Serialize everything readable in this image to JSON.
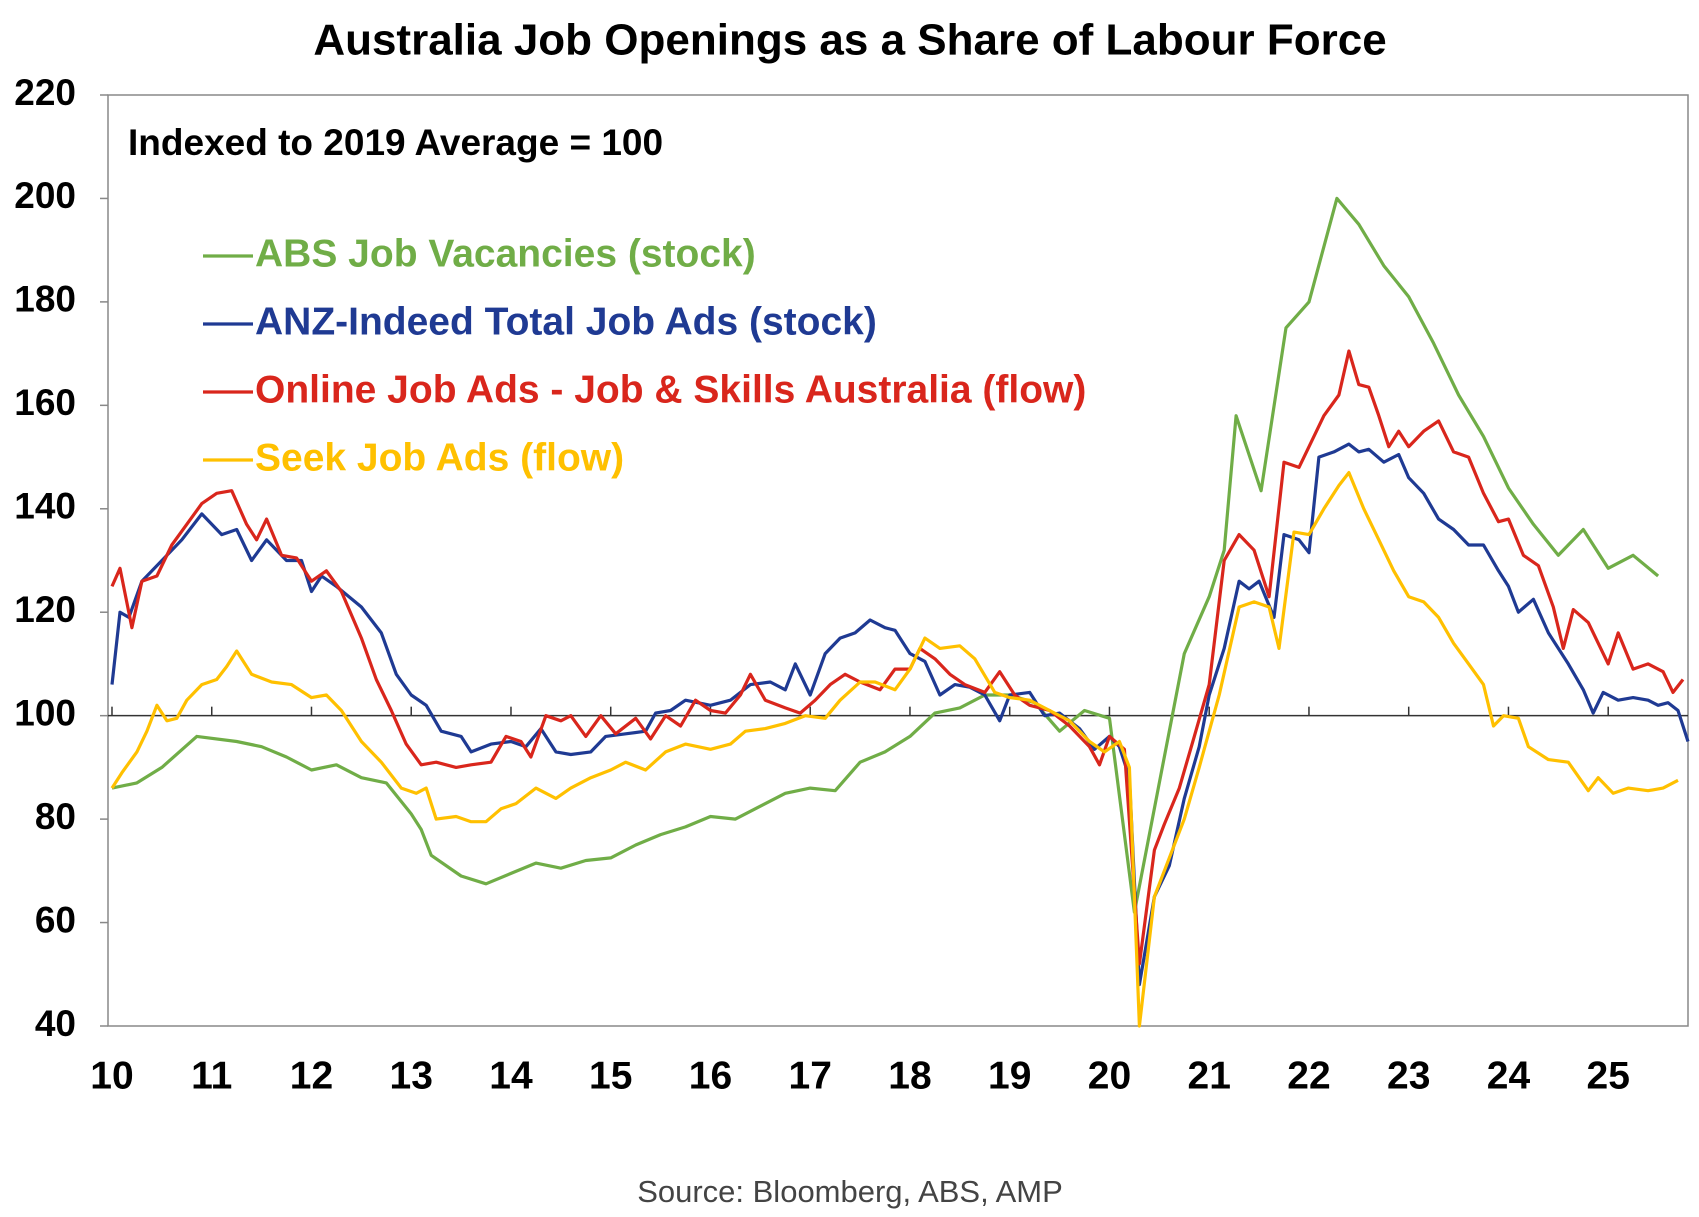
{
  "chart_data": {
    "type": "line",
    "title": "Australia Job Openings as a Share of Labour Force",
    "subtitle": "Indexed to 2019 Average = 100",
    "source": "Source: Bloomberg, ABS, AMP",
    "xlim": [
      9.96,
      25.8
    ],
    "xticks": [
      10,
      11,
      12,
      13,
      14,
      15,
      16,
      17,
      18,
      19,
      20,
      21,
      22,
      23,
      24,
      25
    ],
    "ylim": [
      40,
      220
    ],
    "yticks": [
      40,
      60,
      80,
      100,
      120,
      140,
      160,
      180,
      200,
      220
    ],
    "reference_line": 100,
    "legend": "upper left",
    "grid": false,
    "series": [
      {
        "name": "ABS Job Vacancies (stock)",
        "color": "#70ad47",
        "x": [
          10.0,
          10.25,
          10.5,
          10.85,
          11.25,
          11.5,
          11.75,
          12.0,
          12.25,
          12.5,
          12.75,
          13.0,
          13.1,
          13.2,
          13.5,
          13.75,
          14.0,
          14.25,
          14.5,
          14.75,
          15.0,
          15.25,
          15.5,
          15.75,
          16.0,
          16.25,
          16.5,
          16.75,
          17.0,
          17.25,
          17.5,
          17.75,
          18.0,
          18.25,
          18.5,
          18.75,
          19.0,
          19.25,
          19.5,
          19.75,
          20.0,
          20.25,
          20.5,
          20.75,
          21.0,
          21.15,
          21.27,
          21.52,
          21.77,
          22.0,
          22.28,
          22.5,
          22.75,
          23.0,
          23.25,
          23.5,
          23.75,
          24.0,
          24.25,
          24.5,
          24.75,
          25.0,
          25.25,
          25.5
        ],
        "values": [
          86,
          87,
          90,
          96,
          95,
          94,
          92,
          89.5,
          90.5,
          88,
          87,
          81,
          78,
          73,
          69,
          67.5,
          69.5,
          71.5,
          70.5,
          72,
          72.5,
          75,
          77,
          78.5,
          80.5,
          80,
          82.5,
          85,
          86,
          85.5,
          91,
          93,
          96,
          100.5,
          101.5,
          104,
          104,
          102.5,
          97,
          101,
          99.5,
          62,
          87,
          112,
          123,
          132,
          158,
          143.5,
          175,
          180,
          200,
          195,
          187,
          181,
          172,
          162,
          154,
          144,
          137,
          131,
          136,
          128.5,
          131,
          127
        ]
      },
      {
        "name": "ANZ-Indeed Total Job Ads (stock)",
        "color": "#1f3a93",
        "x": [
          10.0,
          10.08,
          10.17,
          10.3,
          10.5,
          10.7,
          10.9,
          11.1,
          11.25,
          11.4,
          11.55,
          11.75,
          11.9,
          12.0,
          12.1,
          12.25,
          12.5,
          12.7,
          12.85,
          13.0,
          13.15,
          13.3,
          13.5,
          13.6,
          13.8,
          14.0,
          14.15,
          14.3,
          14.45,
          14.6,
          14.8,
          14.95,
          15.15,
          15.35,
          15.45,
          15.6,
          15.75,
          16.0,
          16.2,
          16.4,
          16.6,
          16.75,
          16.85,
          17.0,
          17.15,
          17.3,
          17.45,
          17.6,
          17.75,
          17.85,
          18.0,
          18.15,
          18.3,
          18.45,
          18.6,
          18.75,
          18.9,
          19.0,
          19.2,
          19.35,
          19.5,
          19.7,
          19.85,
          20.0,
          20.1,
          20.2,
          20.3,
          20.45,
          20.6,
          20.75,
          20.9,
          21.0,
          21.15,
          21.3,
          21.4,
          21.5,
          21.65,
          21.75,
          21.9,
          22.0,
          22.1,
          22.25,
          22.4,
          22.5,
          22.6,
          22.75,
          22.9,
          23.0,
          23.15,
          23.3,
          23.45,
          23.6,
          23.75,
          23.9,
          24.0,
          24.1,
          24.25,
          24.4,
          24.6,
          24.75,
          24.85,
          24.95,
          25.1,
          25.25,
          25.4,
          25.5,
          25.6,
          25.7,
          25.8
        ],
        "values": [
          106,
          120,
          119,
          126,
          130,
          134,
          139,
          135,
          136,
          130,
          134,
          130,
          130,
          124,
          127,
          125,
          121,
          116,
          108,
          104,
          102,
          97,
          96,
          93,
          94.5,
          95,
          94,
          97.5,
          93,
          92.5,
          93,
          96,
          96.5,
          97,
          100.5,
          101,
          103,
          102,
          103,
          106,
          106.5,
          105,
          110,
          104,
          112,
          115,
          116,
          118.5,
          117,
          116.5,
          112,
          110.5,
          104,
          106,
          105.5,
          104,
          99,
          104,
          104.5,
          100,
          100.5,
          97.5,
          93.5,
          96,
          94,
          88,
          48,
          65,
          71,
          84,
          94,
          104,
          113,
          126,
          124.5,
          126,
          119,
          135,
          134,
          131.5,
          150,
          151,
          152.5,
          151,
          151.5,
          149,
          150.5,
          146,
          143,
          138,
          136,
          133,
          133,
          128,
          125,
          120,
          122.5,
          116,
          110,
          105,
          100.5,
          104.5,
          103,
          103.5,
          103,
          102,
          102.5,
          101,
          95
        ]
      },
      {
        "name": "Online Job Ads - Job & Skills Australia (flow)",
        "color": "#d9261c",
        "x": [
          10.0,
          10.08,
          10.2,
          10.3,
          10.45,
          10.6,
          10.75,
          10.9,
          11.05,
          11.2,
          11.35,
          11.45,
          11.55,
          11.7,
          11.85,
          12.0,
          12.15,
          12.3,
          12.5,
          12.65,
          12.8,
          12.95,
          13.1,
          13.25,
          13.45,
          13.6,
          13.8,
          13.95,
          14.1,
          14.2,
          14.35,
          14.5,
          14.6,
          14.75,
          14.9,
          15.05,
          15.25,
          15.4,
          15.55,
          15.7,
          15.85,
          16.0,
          16.15,
          16.3,
          16.4,
          16.55,
          16.75,
          16.9,
          17.05,
          17.2,
          17.35,
          17.5,
          17.7,
          17.85,
          18.0,
          18.1,
          18.25,
          18.4,
          18.55,
          18.75,
          18.9,
          19.05,
          19.2,
          19.4,
          19.6,
          19.8,
          19.9,
          20.0,
          20.15,
          20.3,
          20.45,
          20.55,
          20.7,
          20.85,
          21.0,
          21.15,
          21.3,
          21.45,
          21.6,
          21.75,
          21.9,
          22.0,
          22.15,
          22.3,
          22.4,
          22.5,
          22.6,
          22.7,
          22.8,
          22.9,
          23.0,
          23.15,
          23.3,
          23.45,
          23.6,
          23.75,
          23.9,
          24.0,
          24.15,
          24.3,
          24.45,
          24.55,
          24.65,
          24.8,
          25.0,
          25.1,
          25.25,
          25.4,
          25.55,
          25.65,
          25.75
        ],
        "values": [
          125,
          128.5,
          117,
          126,
          127,
          133,
          137,
          141,
          143,
          143.5,
          137,
          134,
          138,
          131,
          130.5,
          126,
          128,
          124,
          115,
          107,
          101,
          94.5,
          90.5,
          91,
          90,
          90.5,
          91,
          96,
          95,
          92,
          100,
          99,
          100,
          96,
          100,
          96.5,
          99.5,
          95.5,
          100,
          98,
          103,
          101,
          100.5,
          104,
          108,
          103,
          101.5,
          100.5,
          103,
          106,
          108,
          106.5,
          105,
          109,
          109,
          113,
          111,
          108,
          106,
          104.5,
          108.5,
          104,
          102,
          101,
          98,
          94,
          90.5,
          96,
          93.5,
          52,
          74,
          79,
          86,
          96,
          106,
          130,
          135,
          132,
          123,
          149,
          148,
          152,
          158,
          162,
          170.5,
          164,
          163.5,
          158,
          152,
          155,
          152,
          155,
          157,
          151,
          150,
          143,
          137.5,
          138,
          131,
          129,
          121,
          113,
          120.5,
          118,
          110,
          116,
          109,
          110,
          108.5,
          104.5,
          107
        ]
      },
      {
        "name": "Seek Job Ads (flow)",
        "color": "#ffc000",
        "x": [
          10.0,
          10.1,
          10.25,
          10.35,
          10.45,
          10.55,
          10.65,
          10.75,
          10.9,
          11.05,
          11.15,
          11.25,
          11.4,
          11.6,
          11.8,
          12.0,
          12.15,
          12.3,
          12.5,
          12.7,
          12.9,
          13.05,
          13.15,
          13.25,
          13.45,
          13.6,
          13.75,
          13.9,
          14.05,
          14.25,
          14.45,
          14.6,
          14.8,
          15.0,
          15.15,
          15.35,
          15.55,
          15.75,
          16.0,
          16.2,
          16.35,
          16.55,
          16.75,
          16.95,
          17.15,
          17.3,
          17.5,
          17.65,
          17.85,
          18.0,
          18.15,
          18.3,
          18.5,
          18.65,
          18.85,
          19.0,
          19.2,
          19.4,
          19.6,
          19.8,
          19.95,
          20.1,
          20.2,
          20.3,
          20.45,
          20.6,
          20.75,
          20.9,
          21.1,
          21.3,
          21.45,
          21.6,
          21.7,
          21.85,
          22.0,
          22.15,
          22.3,
          22.4,
          22.55,
          22.7,
          22.85,
          23.0,
          23.15,
          23.3,
          23.45,
          23.6,
          23.75,
          23.85,
          23.95,
          24.1,
          24.2,
          24.4,
          24.6,
          24.8,
          24.9,
          25.05,
          25.2,
          25.4,
          25.55,
          25.7
        ],
        "values": [
          86,
          89,
          93,
          97,
          102,
          99,
          99.5,
          103,
          106,
          107,
          109.5,
          112.5,
          108,
          106.5,
          106,
          103.5,
          104,
          101,
          95,
          91,
          86,
          85,
          86,
          80,
          80.5,
          79.5,
          79.5,
          82,
          83,
          86,
          84,
          86,
          88,
          89.5,
          91,
          89.5,
          93,
          94.5,
          93.5,
          94.5,
          97,
          97.5,
          98.5,
          100,
          99.5,
          103,
          106.5,
          106.5,
          105,
          109,
          115,
          113,
          113.5,
          111,
          104.5,
          103.5,
          103,
          101,
          99,
          95,
          93,
          95,
          90,
          40,
          65,
          72.5,
          80,
          90,
          104,
          121,
          122,
          121,
          113,
          135.5,
          135,
          140,
          144.5,
          147,
          140,
          134,
          128,
          123,
          122,
          119,
          114,
          110,
          106,
          98,
          100,
          99.5,
          94,
          91.5,
          91,
          85.5,
          88,
          85,
          86,
          85.5,
          86,
          87.5
        ]
      }
    ]
  }
}
